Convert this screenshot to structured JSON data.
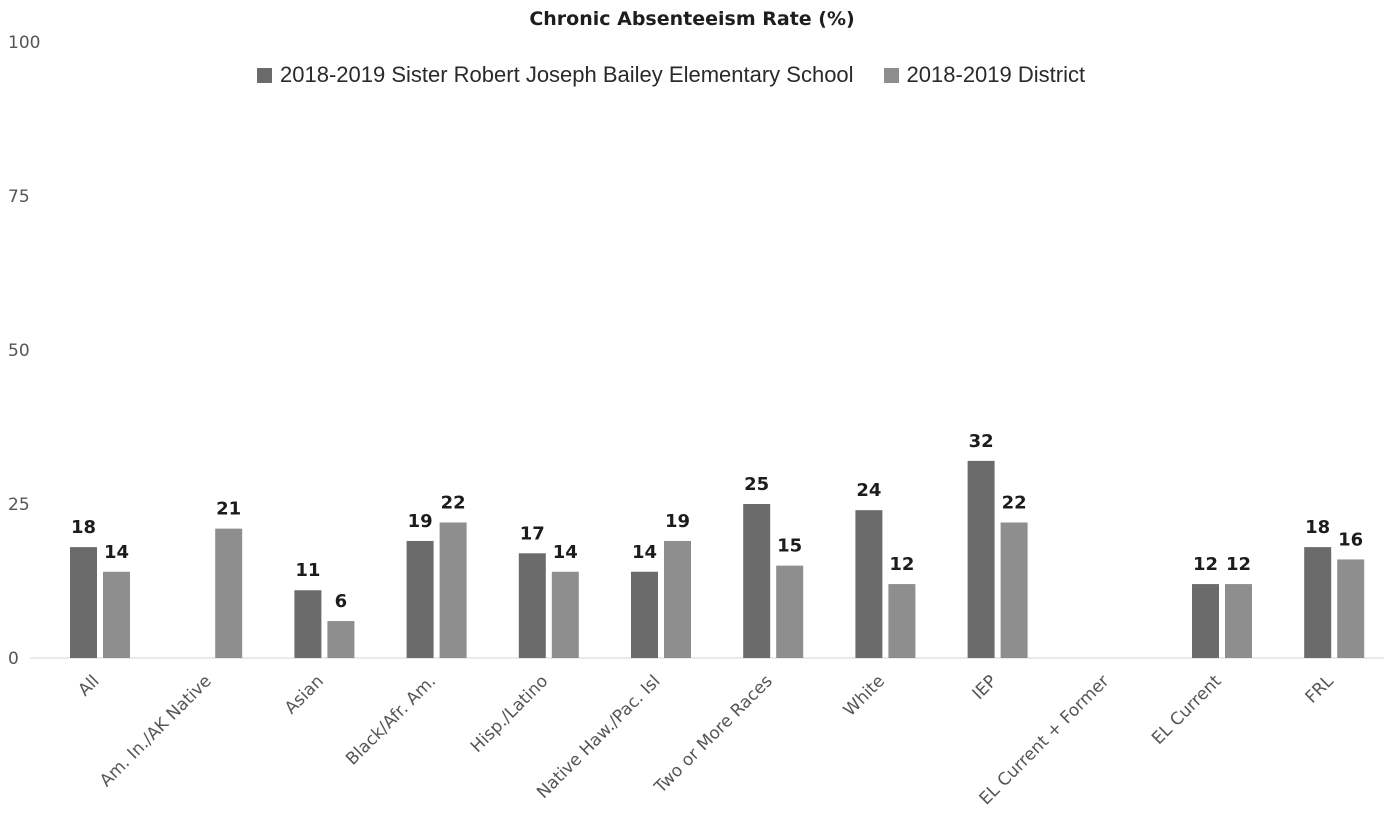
{
  "chart_data": {
    "type": "bar",
    "title": "Chronic Absenteeism Rate (%)",
    "categories": [
      "All",
      "Am. In./AK Native",
      "Asian",
      "Black/Afr. Am.",
      "Hisp./Latino",
      "Native Haw./Pac. Isl",
      "Two or More Races",
      "White",
      "IEP",
      "EL Current + Former",
      "EL Current",
      "FRL"
    ],
    "series": [
      {
        "name": "2018-2019 Sister Robert Joseph Bailey Elementary School",
        "color": "#6b6b6b",
        "values": [
          18,
          null,
          11,
          19,
          17,
          14,
          25,
          24,
          32,
          null,
          12,
          18
        ]
      },
      {
        "name": "2018-2019 District",
        "color": "#8e8e8e",
        "values": [
          14,
          21,
          6,
          22,
          14,
          19,
          15,
          12,
          22,
          null,
          12,
          16
        ]
      }
    ],
    "ylim": [
      0,
      100
    ],
    "yticks": [
      0,
      25,
      50,
      75,
      100
    ],
    "xlabel": "",
    "ylabel": "",
    "legend": "top-center",
    "grid": false
  }
}
